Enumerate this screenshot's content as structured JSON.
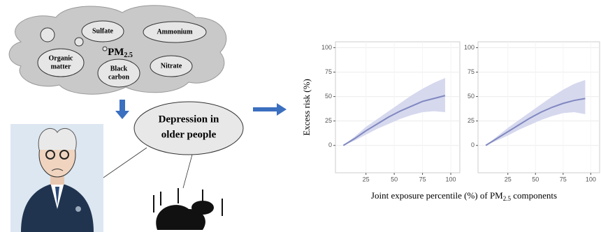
{
  "diagram": {
    "pollutant": {
      "main": "PM",
      "sub": "2.5"
    },
    "components": [
      [
        "Sulfate"
      ],
      [
        "Ammonium"
      ],
      [
        "Organic",
        "matter"
      ],
      [
        "Black",
        "carbon"
      ],
      [
        "Nitrate"
      ]
    ],
    "outcome": [
      "Depression in",
      "older people"
    ]
  },
  "x_label": {
    "before": "Joint exposure percentile (%) of PM",
    "sub": "2.5",
    "after": " components"
  },
  "chart_data": [
    {
      "type": "line",
      "y_label": "Excess risk (%)",
      "x": [
        5,
        15,
        25,
        35,
        45,
        55,
        65,
        75,
        85,
        95
      ],
      "values": [
        0,
        7,
        15,
        22,
        29,
        35,
        40,
        45,
        48,
        51
      ],
      "lower": [
        0,
        5,
        11,
        17,
        22,
        27,
        31,
        34,
        35,
        34
      ],
      "upper": [
        0,
        9,
        19,
        27,
        35,
        43,
        51,
        58,
        64,
        69
      ],
      "color": "#8088c0",
      "band_color": "#d6d8ee",
      "xlim": [
        -2,
        108
      ],
      "ylim": [
        -28,
        106
      ],
      "xticks": [
        25,
        50,
        75,
        100
      ],
      "yticks": [
        0,
        25,
        50,
        75,
        100
      ],
      "grid": true
    },
    {
      "type": "line",
      "x": [
        5,
        15,
        25,
        35,
        45,
        55,
        65,
        75,
        85,
        95
      ],
      "values": [
        0,
        7,
        14,
        21,
        28,
        34,
        39,
        43,
        46,
        48
      ],
      "lower": [
        0,
        5,
        10,
        16,
        21,
        26,
        30,
        33,
        34,
        32
      ],
      "upper": [
        0,
        9,
        18,
        26,
        34,
        42,
        50,
        57,
        63,
        67
      ],
      "color": "#8088c0",
      "band_color": "#d6d8ee",
      "xlim": [
        -2,
        108
      ],
      "ylim": [
        -28,
        106
      ],
      "xticks": [
        25,
        50,
        75,
        100
      ],
      "yticks": [
        0,
        25,
        50,
        75,
        100
      ],
      "grid": true
    }
  ]
}
